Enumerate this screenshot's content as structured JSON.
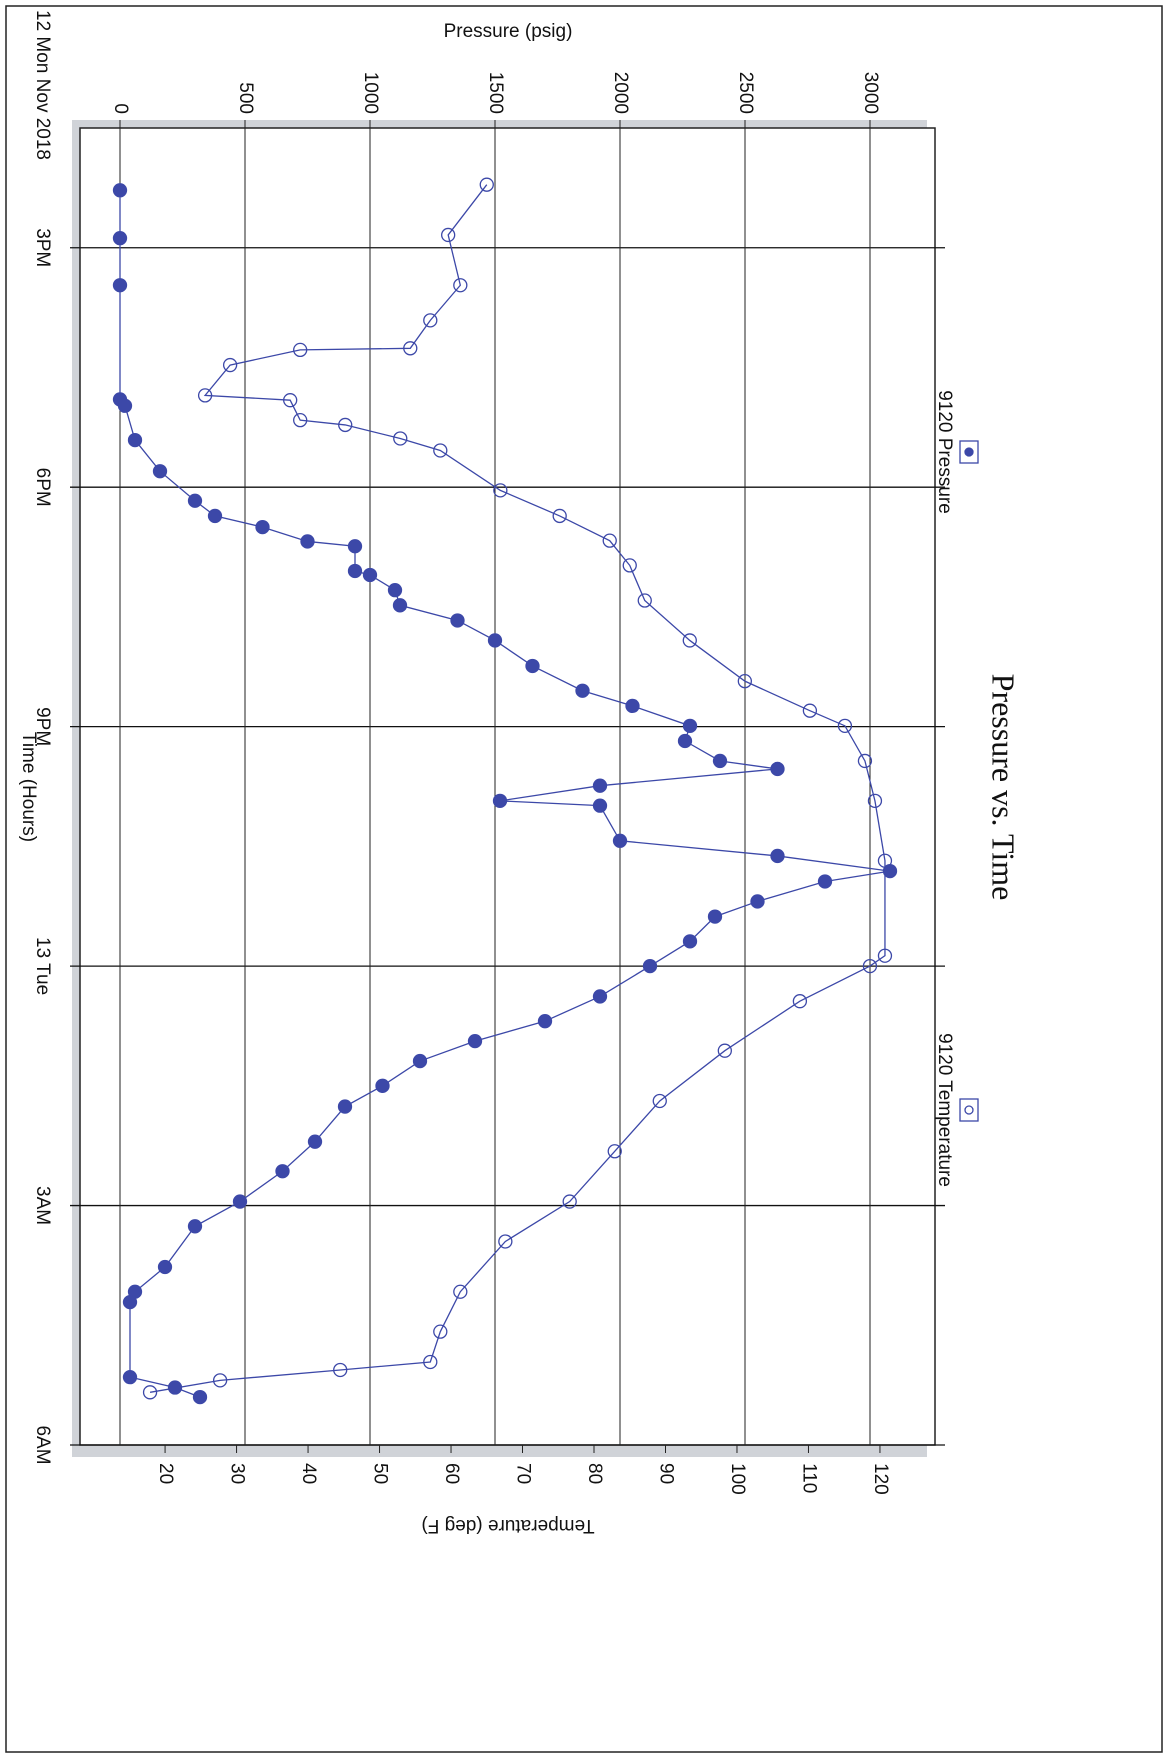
{
  "chart_data": {
    "type": "line",
    "title": "Pressure vs. Time",
    "x_label": "Time (Hours)",
    "y_label": "Pressure (psig)",
    "y2_label": "Temperature (deg F)",
    "xlim": [
      1.5,
      18
    ],
    "xticks": [
      {
        "value": 0,
        "label": "12 Mon Nov 2018"
      },
      {
        "value": 3,
        "label": "3PM"
      },
      {
        "value": 6,
        "label": "6PM"
      },
      {
        "value": 9,
        "label": "9PM"
      },
      {
        "value": 12,
        "label": "13 Tue"
      },
      {
        "value": 15,
        "label": "3AM"
      },
      {
        "value": 18,
        "label": "6AM"
      }
    ],
    "ylim": [
      -160,
      3260
    ],
    "yticks": [
      0,
      500,
      1000,
      1500,
      2000,
      2500,
      3000
    ],
    "y2lim": [
      8.1,
      127.7
    ],
    "y2ticks": [
      20,
      30,
      40,
      50,
      60,
      70,
      80,
      90,
      100,
      110,
      120
    ],
    "grid": true,
    "legend": "top",
    "rotated": true,
    "series": [
      {
        "name": "9120 Pressure",
        "color": "#3c48a8",
        "marker": "filled",
        "x": [
          2.28,
          2.88,
          3.47,
          4.9,
          4.98,
          5.41,
          5.8,
          6.17,
          6.36,
          6.5,
          6.68,
          6.74,
          7.05,
          7.1,
          7.29,
          7.48,
          7.67,
          7.92,
          8.24,
          8.55,
          8.74,
          8.99,
          9.18,
          9.43,
          9.53,
          9.74,
          9.93,
          9.99,
          10.43,
          10.62,
          10.81,
          10.94,
          11.19,
          11.38,
          11.69,
          12.0,
          12.38,
          12.69,
          12.94,
          13.19,
          13.5,
          13.76,
          14.2,
          14.57,
          14.95,
          15.26,
          15.77,
          16.08,
          16.21,
          17.15,
          17.28,
          17.4
        ],
        "values": [
          0,
          0,
          0,
          0,
          20,
          60,
          160,
          300,
          380,
          570,
          750,
          940,
          940,
          1000,
          1100,
          1120,
          1350,
          1500,
          1650,
          1850,
          2050,
          2280,
          2260,
          2400,
          2630,
          1920,
          1520,
          1920,
          2000,
          2630,
          3080,
          2820,
          2550,
          2380,
          2280,
          2120,
          1920,
          1700,
          1420,
          1200,
          1050,
          900,
          780,
          650,
          480,
          300,
          180,
          60,
          40,
          40,
          220,
          320
        ]
      },
      {
        "name": "9120 Temperature",
        "color": "#3c48a8",
        "marker": "open",
        "axis": "y2",
        "x": [
          2.21,
          2.84,
          3.47,
          3.91,
          4.26,
          4.28,
          4.47,
          4.85,
          4.91,
          5.16,
          5.22,
          5.39,
          5.54,
          6.04,
          6.36,
          6.67,
          6.98,
          7.42,
          7.92,
          8.43,
          8.8,
          8.99,
          9.43,
          9.93,
          10.68,
          11.87,
          12.0,
          12.44,
          13.06,
          13.69,
          14.32,
          14.95,
          15.45,
          16.08,
          16.58,
          16.96,
          17.06,
          17.19,
          17.34
        ],
        "values": [
          65.0,
          59.6,
          61.3,
          57.1,
          54.3,
          38.9,
          29.1,
          25.6,
          37.5,
          38.9,
          45.2,
          52.9,
          58.5,
          66.9,
          75.2,
          82.2,
          85.0,
          87.1,
          93.4,
          101.1,
          110.2,
          115.1,
          117.9,
          119.3,
          120.7,
          120.7,
          118.6,
          108.8,
          98.3,
          89.2,
          82.9,
          76.6,
          67.6,
          61.3,
          58.5,
          57.1,
          44.5,
          27.7,
          17.9
        ]
      }
    ]
  }
}
